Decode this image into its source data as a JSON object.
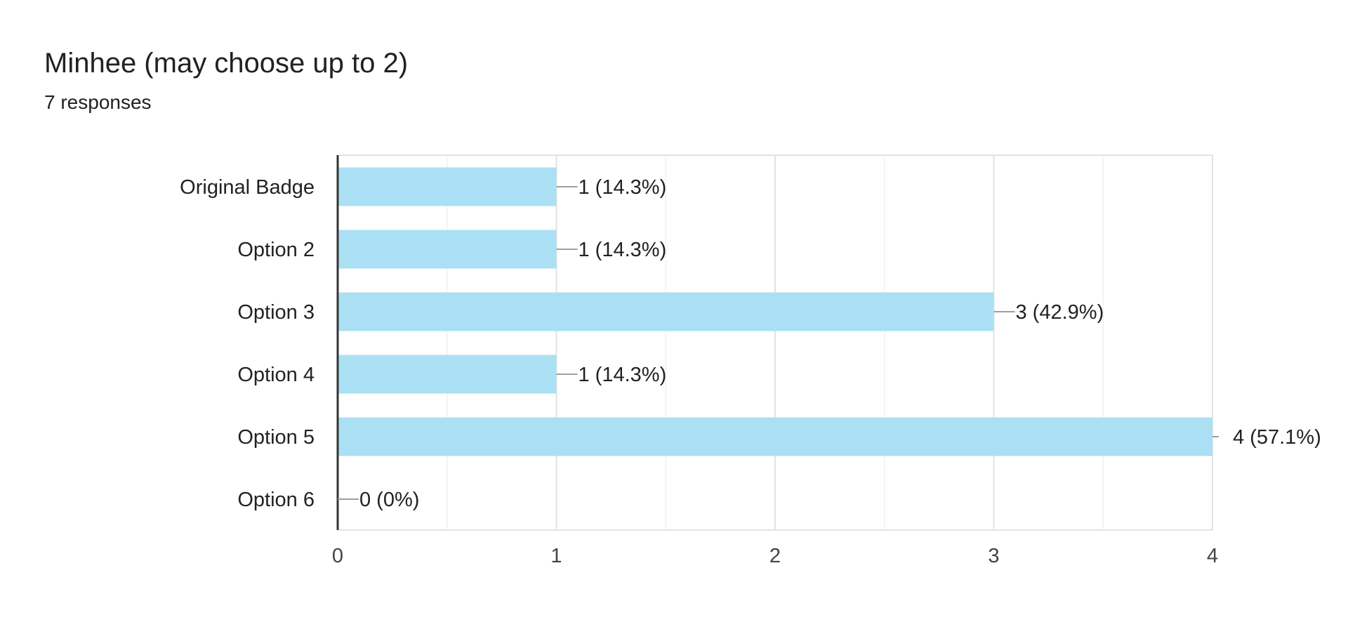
{
  "chart_data": {
    "type": "bar",
    "orientation": "horizontal",
    "title": "Minhee (may choose up to 2)",
    "subtitle": "7 responses",
    "categories": [
      "Original Badge",
      "Option 2",
      "Option 3",
      "Option 4",
      "Option 5",
      "Option 6"
    ],
    "values": [
      1,
      1,
      3,
      1,
      4,
      0
    ],
    "data_labels": [
      "1 (14.3%)",
      "1 (14.3%)",
      "3 (42.9%)",
      "1 (14.3%)",
      "4 (57.1%)",
      "0 (0%)"
    ],
    "xlim": [
      0,
      4
    ],
    "x_ticks": [
      0,
      1,
      2,
      3,
      4
    ],
    "grid": true,
    "legend": "none",
    "bar_color": "#abe0f4",
    "xlabel": "",
    "ylabel": ""
  }
}
